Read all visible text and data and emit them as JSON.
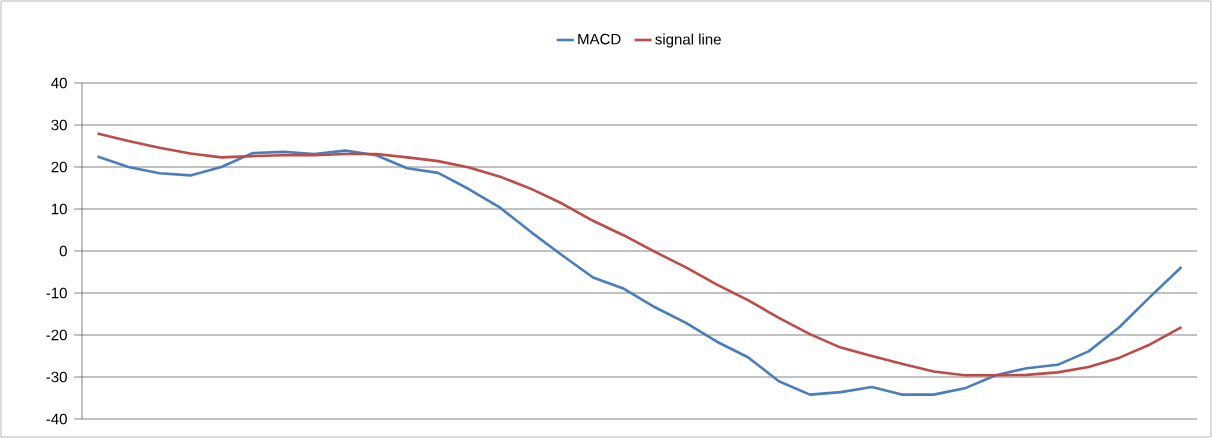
{
  "chart_data": {
    "type": "line",
    "categories": [
      null,
      null,
      null,
      null,
      null,
      null,
      null,
      null,
      null,
      null,
      null,
      null,
      null,
      null,
      null,
      null,
      null,
      null,
      null,
      null,
      null,
      null,
      null,
      null,
      null,
      null,
      null,
      null,
      null,
      null,
      null,
      null,
      null,
      null,
      null,
      null
    ],
    "series": [
      {
        "name": "MACD",
        "color": "#4a7ebb",
        "values": [
          22.5,
          20,
          18.5,
          18,
          20,
          23.3,
          23.6,
          23.1,
          23.9,
          22.8,
          19.7,
          18.6,
          14.7,
          10.3,
          4.5,
          -1,
          -6.3,
          -9,
          -13.4,
          -17.1,
          -21.6,
          -25.3,
          -31,
          -34.2,
          -33.6,
          -32.4,
          -34.2,
          -34.2,
          -32.7,
          -29.6,
          -27.9,
          -27.1,
          -23.9,
          -18.1,
          -10.8,
          -3.8
        ]
      },
      {
        "name": "signal line",
        "color": "#be4b48",
        "values": [
          28,
          26.2,
          24.6,
          23.2,
          22.3,
          22.6,
          22.8,
          22.8,
          23.1,
          23.1,
          22.3,
          21.4,
          19.9,
          17.7,
          14.8,
          11.3,
          7.2,
          3.7,
          -0.2,
          -3.9,
          -8,
          -11.7,
          -15.9,
          -19.8,
          -23,
          -25,
          -26.9,
          -28.7,
          -29.6,
          -29.6,
          -29.5,
          -28.9,
          -27.6,
          -25.4,
          -22.2,
          -18.1
        ]
      }
    ],
    "ylim": [
      -40,
      40
    ],
    "yticks": [
      -40,
      -30,
      -20,
      -10,
      0,
      10,
      20,
      30,
      40
    ],
    "grid": "y",
    "legend": "top",
    "marker": "none",
    "line_style": "solid"
  }
}
